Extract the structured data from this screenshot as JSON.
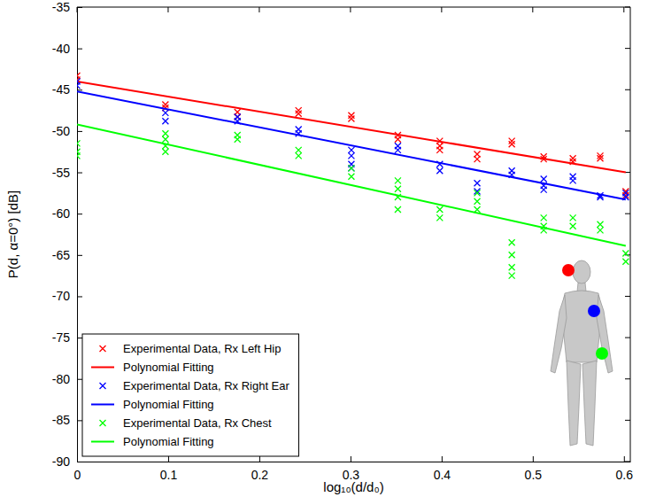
{
  "chart_data": {
    "type": "scatter",
    "x_label": "log₁₀(d/d₀)",
    "y_label": "P(d, α=0°) [dB]",
    "xlim": [
      0,
      0.607
    ],
    "ylim": [
      -90,
      -35
    ],
    "xticks": [
      0,
      0.1,
      0.2,
      0.3,
      0.4,
      0.5,
      0.6
    ],
    "yticks": [
      -90,
      -85,
      -80,
      -75,
      -70,
      -65,
      -60,
      -55,
      -50,
      -45,
      -40,
      -35
    ],
    "grid": false,
    "legend": "lower left",
    "series": [
      {
        "name": "Experimental Data, Rx Left Hip",
        "type": "scatter",
        "marker": "x",
        "color": "#ff0000",
        "x": [
          0,
          0,
          0.097,
          0.097,
          0.176,
          0.176,
          0.243,
          0.243,
          0.301,
          0.301,
          0.352,
          0.352,
          0.398,
          0.398,
          0.398,
          0.439,
          0.439,
          0.477,
          0.477,
          0.512,
          0.512,
          0.544,
          0.544,
          0.574,
          0.574,
          0.602,
          0.602
        ],
        "values": [
          -43.3,
          -43.8,
          -46.8,
          -47.2,
          -47.7,
          -48.3,
          -47.5,
          -47.9,
          -48.1,
          -48.5,
          -50.5,
          -51,
          -51.2,
          -51.8,
          -52.3,
          -52.8,
          -53.4,
          -51.2,
          -51.6,
          -53.1,
          -53.4,
          -53.3,
          -53.7,
          -53,
          -53.3,
          -57.3,
          -57.8
        ]
      },
      {
        "name": "Polynomial Fitting",
        "type": "line",
        "line_style": "solid",
        "color": "#ff0000",
        "x": [
          0,
          0.602
        ],
        "values": [
          -44,
          -55
        ]
      },
      {
        "name": "Experimental Data, Rx Right Ear",
        "type": "scatter",
        "marker": "x",
        "color": "#0000ff",
        "x": [
          0,
          0,
          0.097,
          0.097,
          0.176,
          0.176,
          0.243,
          0.243,
          0.301,
          0.301,
          0.301,
          0.301,
          0.352,
          0.352,
          0.398,
          0.398,
          0.439,
          0.439,
          0.477,
          0.477,
          0.512,
          0.512,
          0.512,
          0.544,
          0.544,
          0.574,
          0.574,
          0.602,
          0.602
        ],
        "values": [
          -44,
          -44.5,
          -47.8,
          -48.8,
          -48.3,
          -48.8,
          -49.8,
          -50.3,
          -52.3,
          -53,
          -54,
          -54.5,
          -51.8,
          -52.3,
          -54,
          -54.8,
          -56.3,
          -57.3,
          -54.8,
          -55.3,
          -55.8,
          -56.6,
          -57.1,
          -55.5,
          -56,
          -57.8,
          -58,
          -57.5,
          -58
        ]
      },
      {
        "name": "Polynomial Fitting",
        "type": "line",
        "line_style": "solid",
        "color": "#0000ff",
        "x": [
          0,
          0.602
        ],
        "values": [
          -45.2,
          -58.3
        ]
      },
      {
        "name": "Experimental Data, Rx Chest",
        "type": "scatter",
        "marker": "x",
        "color": "#00ff00",
        "x": [
          0,
          0,
          0,
          0.097,
          0.097,
          0.097,
          0.097,
          0.176,
          0.176,
          0.243,
          0.243,
          0.301,
          0.301,
          0.352,
          0.352,
          0.352,
          0.352,
          0.398,
          0.398,
          0.439,
          0.439,
          0.439,
          0.477,
          0.477,
          0.477,
          0.477,
          0.512,
          0.512,
          0.512,
          0.544,
          0.544,
          0.574,
          0.574,
          0.602,
          0.602
        ],
        "values": [
          -51.5,
          -52.5,
          -53,
          -50.3,
          -51,
          -51.8,
          -52.5,
          -50.5,
          -51,
          -52.3,
          -53,
          -54.5,
          -55.5,
          -56,
          -57,
          -58,
          -59.5,
          -59.5,
          -60.5,
          -57.5,
          -58.5,
          -59.5,
          -63.5,
          -65,
          -66.5,
          -67.5,
          -60.5,
          -61.5,
          -62,
          -60.5,
          -61.5,
          -61.3,
          -62,
          -64.8,
          -65.8
        ]
      },
      {
        "name": "Polynomial Fitting",
        "type": "line",
        "line_style": "solid",
        "color": "#00ff00",
        "x": [
          0,
          0.602
        ],
        "values": [
          -49.2,
          -63.9
        ]
      }
    ]
  }
}
